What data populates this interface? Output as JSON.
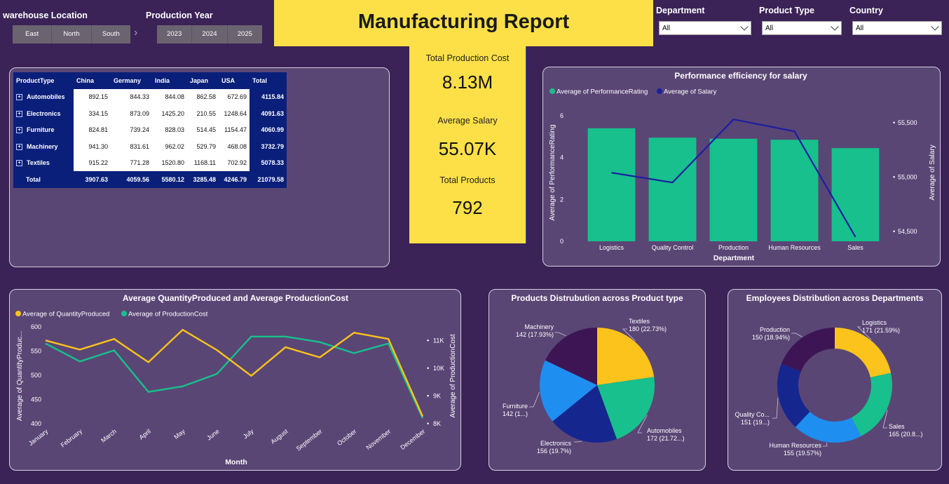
{
  "filters": {
    "warehouse": {
      "title": "warehouse Location",
      "options": [
        "East",
        "North",
        "South"
      ]
    },
    "year": {
      "title": "Production Year",
      "options": [
        "2023",
        "2024",
        "2025"
      ]
    },
    "department": {
      "title": "Department",
      "value": "All"
    },
    "product_type": {
      "title": "Product Type",
      "value": "All"
    },
    "country": {
      "title": "Country",
      "value": "All"
    }
  },
  "header": {
    "title": "Manufacturing Report"
  },
  "kpis": {
    "cost_label": "Total Production Cost",
    "cost_value": "8.13M",
    "salary_label": "Average Salary",
    "salary_value": "55.07K",
    "products_label": "Total Products",
    "products_value": "792"
  },
  "matrix": {
    "headers": [
      "ProductType",
      "China",
      "Germany",
      "India",
      "Japan",
      "USA",
      "Total"
    ],
    "rows": [
      {
        "label": "Automobiles",
        "values": [
          "892.15",
          "844.33",
          "844.08",
          "862.58",
          "672.69"
        ],
        "total": "4115.84"
      },
      {
        "label": "Electronics",
        "values": [
          "334.15",
          "873.09",
          "1425.20",
          "210.55",
          "1248.64"
        ],
        "total": "4091.63"
      },
      {
        "label": "Furniture",
        "values": [
          "824.81",
          "739.24",
          "828.03",
          "514.45",
          "1154.47"
        ],
        "total": "4060.99"
      },
      {
        "label": "Machinery",
        "values": [
          "941.30",
          "831.61",
          "962.02",
          "529.79",
          "468.08"
        ],
        "total": "3732.79"
      },
      {
        "label": "Textiles",
        "values": [
          "915.22",
          "771.28",
          "1520.80",
          "1168.11",
          "702.92"
        ],
        "total": "5078.33"
      }
    ],
    "total_row": {
      "label": "Total",
      "values": [
        "3907.63",
        "4059.56",
        "5580.12",
        "3285.48",
        "4246.79"
      ],
      "total": "21079.58"
    }
  },
  "colors": {
    "green": "#17c08c",
    "navy": "#1b1fa0",
    "yellow": "#fbc31b",
    "blue": "#1e8ef0",
    "purple": "#3d1555",
    "indigo": "#15268f"
  },
  "chart_data": [
    {
      "type": "bar",
      "title": "Performance efficiency for salary",
      "legend": [
        "Average of PerformanceRating",
        "Average of Salary"
      ],
      "xlabel": "Department",
      "ylabel": "Average of PerformanceRating",
      "y2label": "Average of Salary",
      "categories": [
        "Logistics",
        "Quality Control",
        "Production",
        "Human Resources",
        "Sales"
      ],
      "series": [
        {
          "name": "Average of PerformanceRating",
          "type": "bar",
          "values": [
            5.4,
            4.95,
            4.9,
            4.85,
            4.45
          ]
        },
        {
          "name": "Average of Salary",
          "type": "line",
          "values": [
            55040,
            54950,
            55530,
            55420,
            54450
          ]
        }
      ],
      "ylim": [
        0,
        6.5
      ],
      "y_ticks": [
        "0",
        "2",
        "4",
        "6"
      ],
      "y2lim": [
        54410,
        55660
      ],
      "y2_ticks": [
        "54,500",
        "55,000",
        "55,500"
      ]
    },
    {
      "type": "line",
      "title": "Average QuantityProduced and Average ProductionCost",
      "legend": [
        "Average of QuantityProduced",
        "Average of ProductionCost"
      ],
      "xlabel": "Month",
      "ylabel": "Average of QuantityProduc...",
      "y2label": "Average of ProductionCost",
      "categories": [
        "January",
        "February",
        "March",
        "April",
        "May",
        "June",
        "July",
        "August",
        "September",
        "October",
        "November",
        "December"
      ],
      "series": [
        {
          "name": "Average of QuantityProduced",
          "values": [
            572,
            553,
            575,
            527,
            594,
            552,
            499,
            558,
            537,
            588,
            575,
            415
          ]
        },
        {
          "name": "Average of ProductionCost",
          "values": [
            10900,
            10250,
            10650,
            9150,
            9350,
            9800,
            11150,
            11150,
            10950,
            10550,
            10900,
            8200
          ]
        }
      ],
      "ylim": [
        400,
        600
      ],
      "y_ticks": [
        "400",
        "450",
        "500",
        "550",
        "600"
      ],
      "y2lim": [
        8000,
        11500
      ],
      "y2_ticks": [
        "8K",
        "9K",
        "10K",
        "11K"
      ]
    },
    {
      "type": "pie",
      "title": "Products Distrubution across Product type",
      "slices": [
        {
          "label": "Textiles",
          "value": 180,
          "text": "180 (22.73%)"
        },
        {
          "label": "Automobiles",
          "value": 172,
          "text": "172 (21.72...)"
        },
        {
          "label": "Electronics",
          "value": 156,
          "text": "156 (19.7%)"
        },
        {
          "label": "Furniture",
          "value": 142,
          "text": "142 (1...)"
        },
        {
          "label": "Machinery",
          "value": 142,
          "text": "142 (17.93%)"
        }
      ]
    },
    {
      "type": "pie",
      "donut": true,
      "title": "Employees Distribution across Departments",
      "slices": [
        {
          "label": "Logistics",
          "value": 171,
          "text": "171 (21.59%)"
        },
        {
          "label": "Sales",
          "value": 165,
          "text": "165 (20.8...)"
        },
        {
          "label": "Human Resources",
          "value": 155,
          "text": "155 (19.57%)"
        },
        {
          "label": "Quality Co...",
          "value": 151,
          "text": "151 (19...)"
        },
        {
          "label": "Production",
          "value": 150,
          "text": "150 (18.94%)"
        }
      ]
    }
  ]
}
